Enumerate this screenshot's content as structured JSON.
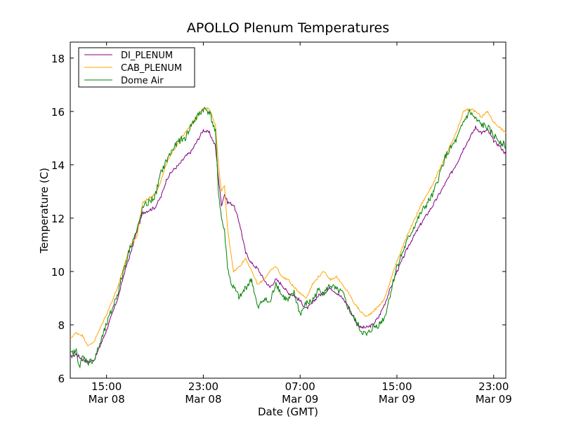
{
  "chart_data": {
    "type": "line",
    "title": "APOLLO Plenum Temperatures",
    "xlabel": "Date (GMT)",
    "ylabel": "Temperature (C)",
    "x_unit": "hours since Mar 08 10:00 GMT",
    "xlim": [
      0,
      36
    ],
    "ylim": [
      6,
      18.6
    ],
    "yticks": [
      6,
      8,
      10,
      12,
      14,
      16,
      18
    ],
    "xticks": [
      {
        "x": 3,
        "time": "15:00",
        "date": "Mar 08"
      },
      {
        "x": 11,
        "time": "23:00",
        "date": "Mar 08"
      },
      {
        "x": 19,
        "time": "07:00",
        "date": "Mar 09"
      },
      {
        "x": 27,
        "time": "15:00",
        "date": "Mar 09"
      },
      {
        "x": 35,
        "time": "23:00",
        "date": "Mar 09"
      }
    ],
    "legend_position": "top-left",
    "grid": false,
    "series": [
      {
        "name": "DI_PLENUM",
        "color": "#800080",
        "x": [
          0,
          0.5,
          1,
          1.5,
          2,
          3,
          4,
          4.5,
          5,
          5.5,
          6,
          7,
          7.5,
          8,
          8.5,
          9,
          9.5,
          10,
          10.5,
          11,
          11.5,
          12,
          12.25,
          12.5,
          12.75,
          13,
          13.5,
          14,
          14.5,
          15,
          15.5,
          16,
          16.5,
          17,
          17.5,
          18,
          18.5,
          19,
          19.5,
          20,
          20.5,
          21,
          21.5,
          22,
          22.5,
          23,
          23.5,
          24,
          24.5,
          25,
          25.5,
          26,
          27,
          28,
          29,
          30,
          31,
          32,
          32.5,
          33,
          33.5,
          34,
          34.5,
          35,
          35.5,
          36
        ],
        "values": [
          6.8,
          6.9,
          6.7,
          6.6,
          6.7,
          7.8,
          9.1,
          10.0,
          10.7,
          11.5,
          12.2,
          12.4,
          12.8,
          13.5,
          13.8,
          14.0,
          14.3,
          14.5,
          14.9,
          15.3,
          15.2,
          14.7,
          13.5,
          12.5,
          12.9,
          12.6,
          12.5,
          11.8,
          10.7,
          10.3,
          10.1,
          9.7,
          9.4,
          9.7,
          9.5,
          9.2,
          9.1,
          8.9,
          8.6,
          8.8,
          9.1,
          9.2,
          9.4,
          9.2,
          9.0,
          8.7,
          8.2,
          7.9,
          7.9,
          8.0,
          8.3,
          8.8,
          10.0,
          11.0,
          11.8,
          12.5,
          13.3,
          14.1,
          14.6,
          15.0,
          15.4,
          15.2,
          15.3,
          14.9,
          14.7,
          14.4
        ]
      },
      {
        "name": "CAB_PLENUM",
        "color": "#ffa500",
        "x": [
          0,
          0.5,
          1,
          1.5,
          2,
          3,
          4,
          4.5,
          5,
          5.5,
          6,
          7,
          7.5,
          8,
          8.5,
          9,
          9.5,
          10,
          10.5,
          11,
          11.5,
          12,
          12.25,
          12.5,
          12.75,
          13,
          13.5,
          14,
          14.5,
          15,
          15.5,
          16,
          16.5,
          17,
          17.5,
          18,
          18.5,
          19,
          19.5,
          20,
          20.5,
          21,
          21.5,
          22,
          22.5,
          23,
          23.5,
          24,
          24.5,
          25,
          25.5,
          26,
          27,
          28,
          29,
          30,
          31,
          32,
          32.5,
          33,
          33.5,
          34,
          34.5,
          35,
          35.5,
          36
        ],
        "values": [
          7.5,
          7.7,
          7.6,
          7.2,
          7.4,
          8.4,
          9.5,
          10.3,
          11.0,
          11.3,
          12.6,
          12.9,
          13.4,
          14.1,
          14.5,
          14.9,
          15.2,
          15.5,
          15.9,
          16.1,
          16.1,
          15.5,
          14.0,
          13.0,
          13.2,
          11.6,
          10.0,
          10.2,
          10.5,
          10.0,
          9.5,
          9.7,
          10.0,
          10.2,
          9.8,
          9.7,
          9.4,
          9.2,
          9.0,
          9.5,
          9.8,
          10.0,
          9.7,
          9.8,
          9.5,
          9.2,
          8.8,
          8.5,
          8.3,
          8.5,
          8.7,
          9.0,
          10.4,
          11.5,
          12.5,
          13.3,
          14.3,
          15.3,
          16.0,
          16.1,
          16.0,
          15.8,
          16.0,
          15.6,
          15.4,
          15.2
        ]
      },
      {
        "name": "Dome Air",
        "color": "#008000",
        "x": [
          0,
          0.5,
          0.8,
          1,
          1.5,
          2,
          3,
          4,
          4.5,
          5,
          5.5,
          6,
          7,
          7.5,
          8,
          8.5,
          9,
          9.5,
          10,
          10.5,
          11,
          11.5,
          12,
          12.25,
          12.5,
          12.75,
          13,
          13.25,
          13.5,
          14,
          14.5,
          15,
          15.5,
          16,
          16.5,
          17,
          17.5,
          18,
          18.5,
          19,
          19.5,
          20,
          20.5,
          21,
          21.5,
          22,
          22.5,
          23,
          23.5,
          24,
          24.5,
          25,
          25.5,
          26,
          27,
          28,
          29,
          30,
          31,
          32,
          32.5,
          33,
          33.5,
          34,
          34.5,
          35,
          35.5,
          36
        ],
        "values": [
          6.9,
          7.0,
          6.4,
          6.8,
          6.6,
          6.7,
          8.0,
          9.3,
          10.2,
          11.0,
          11.5,
          12.4,
          12.8,
          13.7,
          14.2,
          14.6,
          14.9,
          15.0,
          15.5,
          15.8,
          16.1,
          16.0,
          15.2,
          13.0,
          12.0,
          11.5,
          10.2,
          9.6,
          9.4,
          9.0,
          9.4,
          9.7,
          8.6,
          9.0,
          8.8,
          9.6,
          9.1,
          8.9,
          9.2,
          8.4,
          8.8,
          8.9,
          9.3,
          9.2,
          9.5,
          9.3,
          9.2,
          8.6,
          8.2,
          7.8,
          7.6,
          7.9,
          8.0,
          8.3,
          10.2,
          11.3,
          12.2,
          12.9,
          14.3,
          15.0,
          15.6,
          16.0,
          15.7,
          15.5,
          15.4,
          15.1,
          14.9,
          14.7
        ]
      }
    ]
  }
}
